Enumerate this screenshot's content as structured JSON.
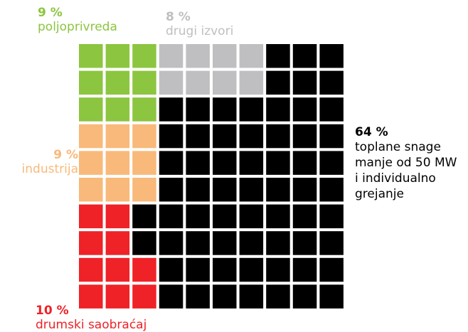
{
  "chart_data": {
    "type": "waffle",
    "grid": {
      "rows": 10,
      "cols": 10,
      "total_cells": 100
    },
    "series": [
      {
        "key": "poljoprivreda",
        "percent_label": "9 %",
        "name": "poljoprivreda",
        "value": 9,
        "color": "#8cc540"
      },
      {
        "key": "drugi",
        "percent_label": "8 %",
        "name": "drugi izvori",
        "value": 8,
        "color": "#bfbfc1"
      },
      {
        "key": "industrija",
        "percent_label": "9 %",
        "name": "industrija",
        "value": 9,
        "color": "#f8b97a"
      },
      {
        "key": "saobracaj",
        "percent_label": "10 %",
        "name": "drumski saobraćaj",
        "value": 10,
        "color": "#ee2227"
      },
      {
        "key": "toplane",
        "percent_label": "64 %",
        "name": "toplane snage manje od 50 MW i individualno grejanje",
        "name_lines": [
          "toplane snage",
          "manje od 50 MW",
          "i individualno",
          "grejanje"
        ],
        "value": 64,
        "color": "#000000"
      }
    ],
    "cells": [
      [
        "poljoprivreda",
        "poljoprivreda",
        "poljoprivreda",
        "drugi",
        "drugi",
        "drugi",
        "drugi",
        "toplane",
        "toplane",
        "toplane"
      ],
      [
        "poljoprivreda",
        "poljoprivreda",
        "poljoprivreda",
        "drugi",
        "drugi",
        "drugi",
        "drugi",
        "toplane",
        "toplane",
        "toplane"
      ],
      [
        "poljoprivreda",
        "poljoprivreda",
        "poljoprivreda",
        "toplane",
        "toplane",
        "toplane",
        "toplane",
        "toplane",
        "toplane",
        "toplane"
      ],
      [
        "industrija",
        "industrija",
        "industrija",
        "toplane",
        "toplane",
        "toplane",
        "toplane",
        "toplane",
        "toplane",
        "toplane"
      ],
      [
        "industrija",
        "industrija",
        "industrija",
        "toplane",
        "toplane",
        "toplane",
        "toplane",
        "toplane",
        "toplane",
        "toplane"
      ],
      [
        "industrija",
        "industrija",
        "industrija",
        "toplane",
        "toplane",
        "toplane",
        "toplane",
        "toplane",
        "toplane",
        "toplane"
      ],
      [
        "saobracaj",
        "saobracaj",
        "toplane",
        "toplane",
        "toplane",
        "toplane",
        "toplane",
        "toplane",
        "toplane",
        "toplane"
      ],
      [
        "saobracaj",
        "saobracaj",
        "toplane",
        "toplane",
        "toplane",
        "toplane",
        "toplane",
        "toplane",
        "toplane",
        "toplane"
      ],
      [
        "saobracaj",
        "saobracaj",
        "saobracaj",
        "toplane",
        "toplane",
        "toplane",
        "toplane",
        "toplane",
        "toplane",
        "toplane"
      ],
      [
        "saobracaj",
        "saobracaj",
        "saobracaj",
        "toplane",
        "toplane",
        "toplane",
        "toplane",
        "toplane",
        "toplane",
        "toplane"
      ]
    ]
  }
}
